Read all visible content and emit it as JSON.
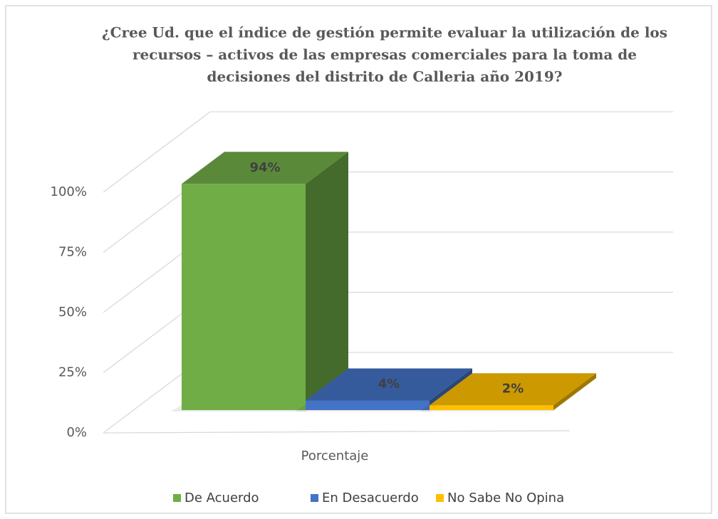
{
  "chart_data": {
    "type": "bar3d",
    "title": [
      "¿Cree  Ud. que el índice de gestión permite evaluar la utilización de los",
      "recursos – activos de las empresas comerciales para la toma de",
      "decisiones del distrito de Calleria año 2019?"
    ],
    "categories": [
      "Porcentaje"
    ],
    "series": [
      {
        "name": "De Acuerdo",
        "color": "#70ad47",
        "values": [
          94
        ],
        "value_labels": [
          "94%"
        ]
      },
      {
        "name": "En Desacuerdo",
        "color": "#4472c4",
        "values": [
          4
        ],
        "value_labels": [
          "4%"
        ]
      },
      {
        "name": "No Sabe No Opina",
        "color": "#ffc000",
        "values": [
          2
        ],
        "value_labels": [
          "2%"
        ]
      }
    ],
    "ylim": [
      0,
      100
    ],
    "yticks": [
      {
        "value": 0,
        "label": "0%"
      },
      {
        "value": 25,
        "label": "25%"
      },
      {
        "value": 50,
        "label": "50%"
      },
      {
        "value": 75,
        "label": "75%"
      },
      {
        "value": 100,
        "label": "100%"
      }
    ],
    "grid": true,
    "legend": "bottom"
  }
}
